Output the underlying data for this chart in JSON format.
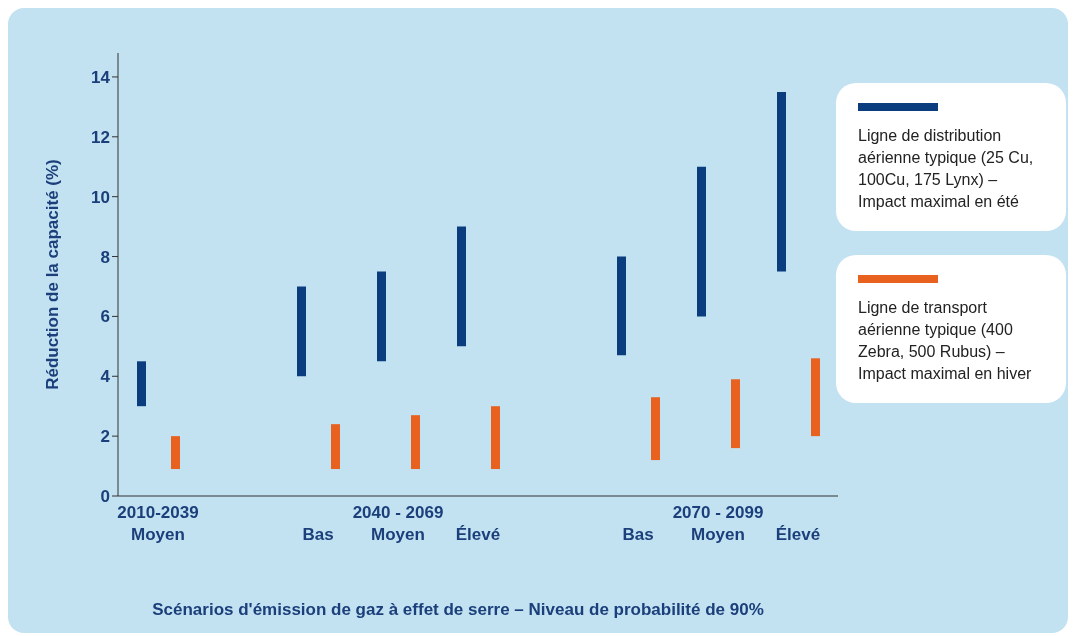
{
  "chart_data": {
    "type": "bar",
    "xlabel": "Scénarios d'émission de gaz à effet de serre – Niveau de probabilité de 90%",
    "ylabel": "Réduction de la capacité (%)",
    "categories": [
      "2010-2039\nMoyen",
      null,
      "Bas",
      "2040 - 2069\nMoyen",
      "Élevé",
      null,
      "Bas",
      "2070 - 2099\nMoyen",
      "Élevé"
    ],
    "series": [
      {
        "name": "Ligne de distribution aérienne typique (25 Cu, 100Cu, 175 Lynx) – Impact maximal en été",
        "color": "#0b3d7e",
        "base": [
          3,
          null,
          4,
          4.5,
          5,
          null,
          4.7,
          6,
          7.5
        ],
        "values": [
          1.5,
          null,
          3,
          3,
          4,
          null,
          3.3,
          5,
          6
        ]
      },
      {
        "name": "Ligne de transport aérienne typique (400 Zebra, 500 Rubus) – Impact maximal en hiver",
        "color": "#e8611f",
        "base": [
          0.9,
          null,
          0.9,
          0.9,
          0.9,
          null,
          1.2,
          1.6,
          2
        ],
        "values": [
          1.1,
          null,
          1.5,
          1.8,
          2.1,
          null,
          2.1,
          2.3,
          2.6
        ]
      }
    ],
    "ylim": [
      0,
      14.8
    ],
    "yticks": [
      0,
      2,
      4,
      6,
      8,
      10,
      12,
      14
    ],
    "grid": false,
    "legend": "right"
  }
}
